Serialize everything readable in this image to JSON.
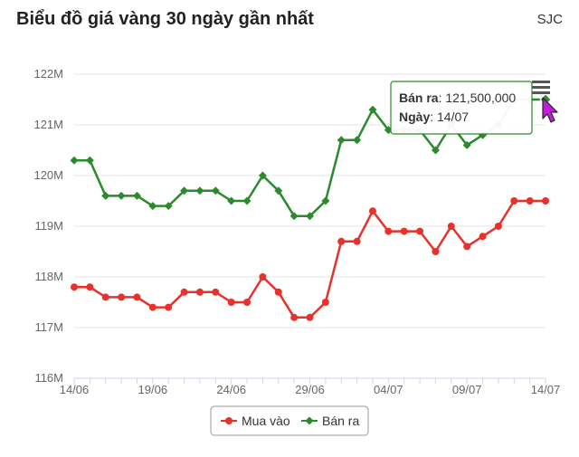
{
  "header": {
    "title": "Biểu đồ giá vàng 30 ngày gần nhất",
    "brand": "SJC"
  },
  "chart_data": {
    "type": "line",
    "title": "Biểu đồ giá vàng 30 ngày gần nhất",
    "xlabel": "",
    "ylabel": "",
    "ylim": [
      116000000,
      122000000
    ],
    "yticks": [
      {
        "value": 116000000,
        "label": "116M"
      },
      {
        "value": 117000000,
        "label": "117M"
      },
      {
        "value": 118000000,
        "label": "118M"
      },
      {
        "value": 119000000,
        "label": "119M"
      },
      {
        "value": 120000000,
        "label": "120M"
      },
      {
        "value": 121000000,
        "label": "121M"
      },
      {
        "value": 122000000,
        "label": "122M"
      }
    ],
    "xticks": [
      {
        "index": 0,
        "label": "14/06"
      },
      {
        "index": 5,
        "label": "19/06"
      },
      {
        "index": 10,
        "label": "24/06"
      },
      {
        "index": 15,
        "label": "29/06"
      },
      {
        "index": 20,
        "label": "04/07"
      },
      {
        "index": 25,
        "label": "09/07"
      },
      {
        "index": 30,
        "label": "14/07"
      }
    ],
    "x": [
      "14/06",
      "15/06",
      "16/06",
      "17/06",
      "18/06",
      "19/06",
      "20/06",
      "21/06",
      "22/06",
      "23/06",
      "24/06",
      "25/06",
      "26/06",
      "27/06",
      "28/06",
      "29/06",
      "30/06",
      "01/07",
      "02/07",
      "03/07",
      "04/07",
      "05/07",
      "06/07",
      "07/07",
      "08/07",
      "09/07",
      "10/07",
      "11/07",
      "12/07",
      "13/07",
      "14/07"
    ],
    "series": [
      {
        "name": "Mua vào",
        "color": "#e8312a",
        "marker": "circle",
        "values": [
          117800000,
          117800000,
          117600000,
          117600000,
          117600000,
          117400000,
          117400000,
          117700000,
          117700000,
          117700000,
          117500000,
          117500000,
          118000000,
          117700000,
          117200000,
          117200000,
          117500000,
          118700000,
          118700000,
          119300000,
          118900000,
          118900000,
          118900000,
          118500000,
          119000000,
          118600000,
          118800000,
          119000000,
          119500000,
          119500000,
          119500000
        ]
      },
      {
        "name": "Bán ra",
        "color": "#2b8a2b",
        "marker": "diamond",
        "values": [
          120300000,
          120300000,
          119600000,
          119600000,
          119600000,
          119400000,
          119400000,
          119700000,
          119700000,
          119700000,
          119500000,
          119500000,
          120000000,
          119700000,
          119200000,
          119200000,
          119500000,
          120700000,
          120700000,
          121300000,
          120900000,
          120900000,
          120900000,
          120500000,
          121000000,
          120600000,
          120800000,
          121000000,
          121500000,
          121500000,
          121500000
        ]
      }
    ],
    "grid": true,
    "legend": "bottom-center",
    "tooltip": {
      "index": 30,
      "series_label": "Bán ra",
      "value_text": "121,500,000",
      "date_label": "Ngày",
      "date_text": "14/07",
      "border_color": "#2b8a2b"
    },
    "menu_icon": "hamburger-menu-icon"
  }
}
